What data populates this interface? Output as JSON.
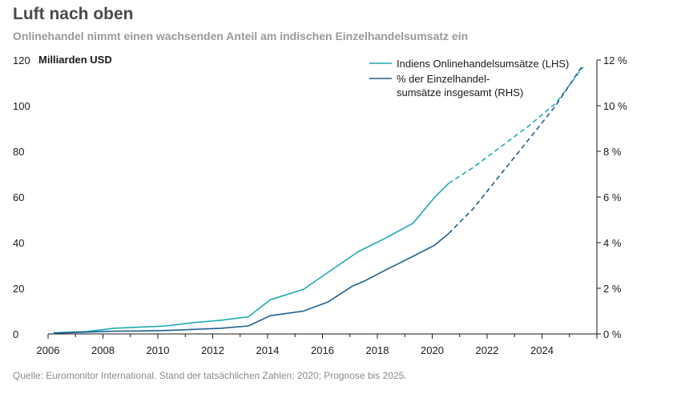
{
  "title": "Luft nach oben",
  "subtitle": "Onlinehandel nimmt einen wachsenden Anteil am indischen Einzelhandelsumsatz ein",
  "source": "Quelle: Euromonitor International. Stand der tatsächlichen Zahlen: 2020; Prognose bis 2025.",
  "colors": {
    "online": "#1fa9b3",
    "share": "#1e5f8e",
    "axis": "#1a1a1a"
  },
  "chart_data": {
    "type": "line",
    "title": "Luft nach oben",
    "subtitle": "Onlinehandel nimmt einen wachsenden Anteil am indischen Einzelhandelsumsatz ein",
    "y_left_unit": "Milliarden USD",
    "y_left_ticks": [
      "0",
      "20",
      "40",
      "60",
      "80",
      "100",
      "120"
    ],
    "y_right_ticks": [
      "0 %",
      "2 %",
      "4 %",
      "6 %",
      "8 %",
      "10 %",
      "12 %"
    ],
    "x_ticks": [
      "2006",
      "2008",
      "2010",
      "2012",
      "2014",
      "2016",
      "2018",
      "2020",
      "2022",
      "2024"
    ],
    "ylim_left": [
      0,
      120
    ],
    "ylim_right": [
      0,
      12
    ],
    "xlim": [
      2006,
      2026
    ],
    "actual_until": 2020.6,
    "series": [
      {
        "name": "Indiens Onlinehandelsumsätze (LHS)",
        "axis": "left",
        "x": [
          2006.2,
          2007.4,
          2008.4,
          2009.4,
          2010.3,
          2011.3,
          2012.3,
          2013.3,
          2014.1,
          2015.3,
          2016.2,
          2017.3,
          2018.3,
          2019.3,
          2020.1,
          2020.6,
          2021.5,
          2022.5,
          2023.5,
          2024.5,
          2025.5
        ],
        "values": [
          0.5,
          1.0,
          2.5,
          3.0,
          3.5,
          5.0,
          6.0,
          7.5,
          15.0,
          19.5,
          27.0,
          36.0,
          42.0,
          48.5,
          60.0,
          66.0,
          73.0,
          82.0,
          91.0,
          101.0,
          117.0
        ]
      },
      {
        "name": "% der Einzelhandel-\nsumsätze insgesamt (RHS)",
        "axis": "right",
        "x": [
          2006.2,
          2007.4,
          2008.4,
          2009.4,
          2010.3,
          2011.3,
          2012.3,
          2013.3,
          2014.1,
          2015.3,
          2016.2,
          2017.1,
          2017.5,
          2018.3,
          2019.3,
          2020.1,
          2020.6,
          2021.5,
          2022.5,
          2023.5,
          2024.5,
          2025.5
        ],
        "values": [
          0.03,
          0.08,
          0.12,
          0.13,
          0.15,
          0.2,
          0.25,
          0.35,
          0.8,
          1.0,
          1.4,
          2.1,
          2.3,
          2.8,
          3.4,
          3.9,
          4.4,
          5.5,
          7.0,
          8.5,
          10.0,
          11.8
        ]
      }
    ],
    "legend": [
      {
        "line1": "Indiens Onlinehandelsumsätze (LHS)",
        "line2": ""
      },
      {
        "line1": "% der Einzelhandel-",
        "line2": "sumsätze insgesamt (RHS)"
      }
    ]
  }
}
